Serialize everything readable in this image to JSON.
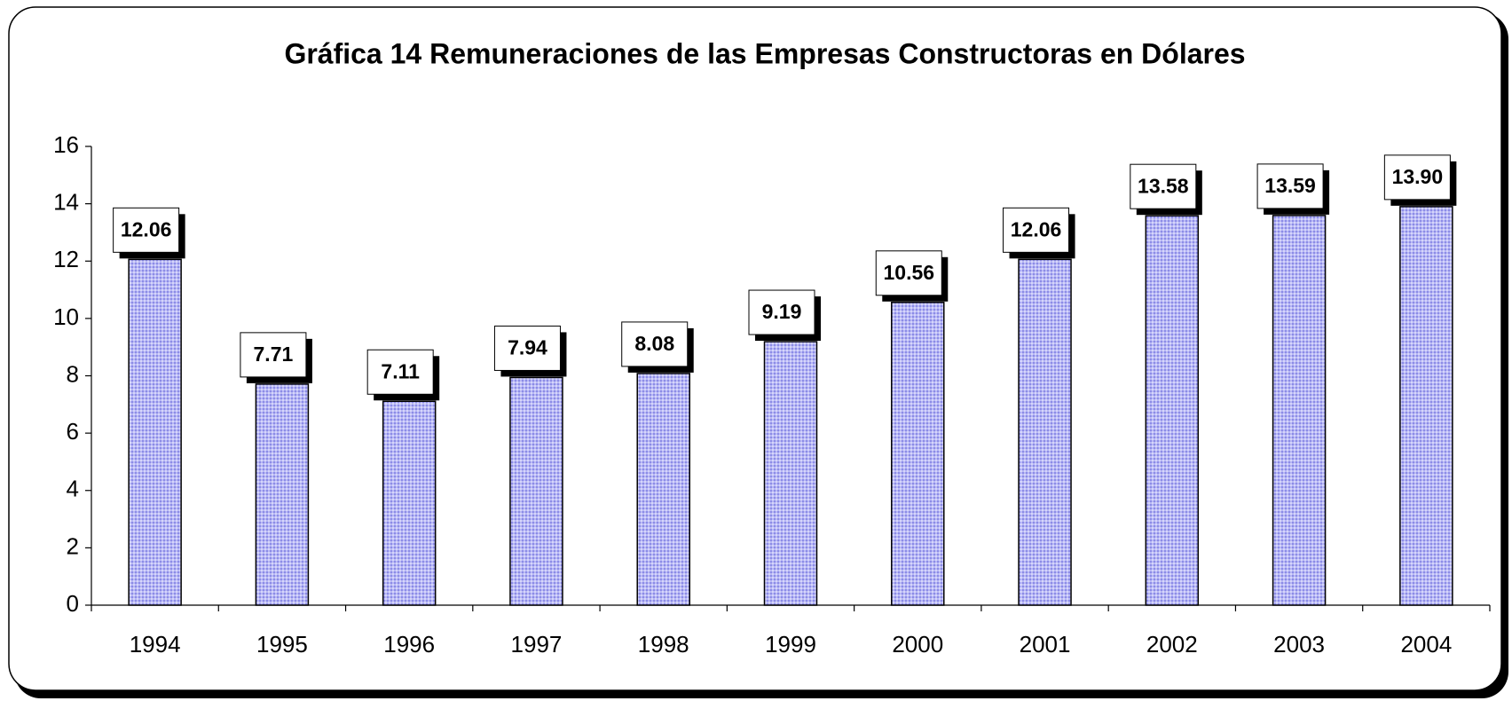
{
  "chart_data": {
    "type": "bar",
    "title": "Gráfica 14  Remuneraciones de las Empresas Constructoras en Dólares",
    "categories": [
      "1994",
      "1995",
      "1996",
      "1997",
      "1998",
      "1999",
      "2000",
      "2001",
      "2002",
      "2003",
      "2004"
    ],
    "values": [
      12.06,
      7.71,
      7.11,
      7.94,
      8.08,
      9.19,
      10.56,
      12.06,
      13.58,
      13.59,
      13.9
    ],
    "value_labels": [
      "12.06",
      "7.71",
      "7.11",
      "7.94",
      "8.08",
      "9.19",
      "10.56",
      "12.06",
      "13.58",
      "13.59",
      "13.90"
    ],
    "color": "#a9a9f2",
    "ylim": [
      0,
      16
    ],
    "yticks": [
      0,
      2,
      4,
      6,
      8,
      10,
      12,
      14,
      16
    ]
  }
}
